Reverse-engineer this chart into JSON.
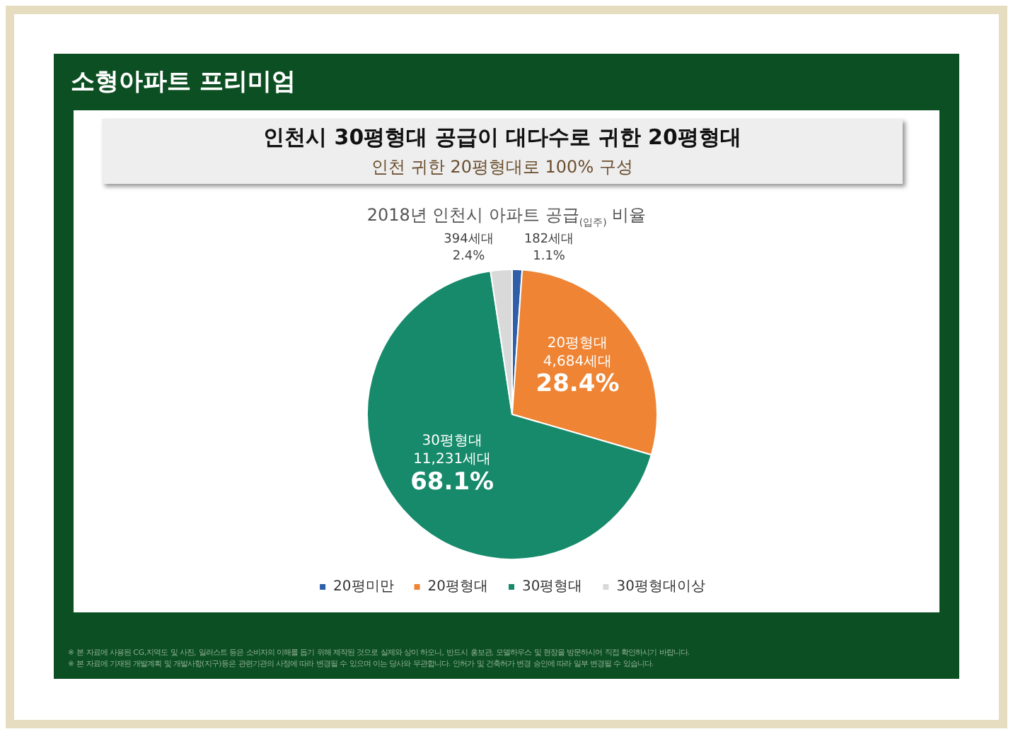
{
  "chart_data": {
    "type": "pie",
    "title": "인천시 30평형대 공급이 대다수로 귀한 20평형대",
    "subtitle": "인천 귀한 20평형대로 100% 구성",
    "annotations": [
      "소형아파트 프리미엄",
      "2018년 인천시 아파트 공급$_{(입주)}$ 비율",
      "※ 본 자료에 사용된 CG,지역도 및 사진, 일러스트 등은 소비자의 이해를 돕기 위해 제작된 것으로 실제와 상이 하오니, 반드시 홍보관, 모델하우스 및 현장을 방문하시어 직접 확인하시기 바랍니다.",
      "※ 본 자료에 기재된 개발계획 및 개발사항(지구)등은 관련기관의 사정에 따라 변경될 수 있으며 이는 당사와 무관합니다. 인허가 및 건축허가 변경 승인에 따라 일부 변경될 수 있습니다."
    ],
    "categories": [
      "20평미만",
      "20평형대",
      "30평형대",
      "30평형대이상"
    ],
    "values": [
      182,
      4684,
      11231,
      394
    ],
    "value_labels": [
      "182세대\n1.1%",
      "20평형대\n4,684세대\n28.4%",
      "30평형대\n11,231세대\n68.1%",
      "394세대\n2.4%"
    ],
    "colors": [
      "#2e5fa8",
      "#ee8434",
      "#168a6a",
      "#d9d9d9"
    ],
    "legend": "bottom"
  }
}
